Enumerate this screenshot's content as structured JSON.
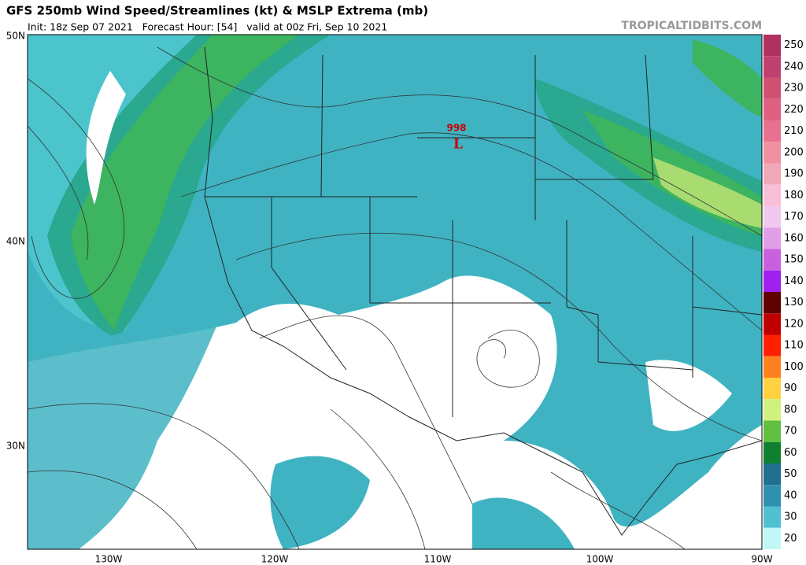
{
  "header": {
    "title": "GFS 250mb Wind Speed/Streamlines (kt) & MSLP Extrema (mb)",
    "subtitle": "Init: 18z Sep 07 2021   Forecast Hour: [54]   valid at 00z Fri, Sep 10 2021",
    "site": "TROPICALTIDBITS.COM"
  },
  "map": {
    "lat_labels": [
      "50N",
      "40N",
      "30N"
    ],
    "lon_labels": [
      "130W",
      "120W",
      "110W",
      "100W",
      "90W"
    ],
    "pressure_label": "998",
    "low_marker": "L"
  },
  "colorbar": {
    "ticks": [
      250,
      240,
      230,
      220,
      210,
      200,
      190,
      180,
      170,
      160,
      150,
      140,
      130,
      120,
      110,
      100,
      90,
      80,
      70,
      60,
      50,
      40,
      30,
      20
    ],
    "colors": [
      "#b03060",
      "#c04070",
      "#d05070",
      "#e06080",
      "#e87090",
      "#f090a0",
      "#f0a8b8",
      "#f8c0d8",
      "#f0c8f0",
      "#e0a0e8",
      "#c860e0",
      "#a020f0",
      "#600000",
      "#c00000",
      "#ff2000",
      "#ff8020",
      "#ffd040",
      "#d0f080",
      "#60c040",
      "#108030",
      "#207090",
      "#3090b0",
      "#50c0d0",
      "#c0f8f8"
    ]
  }
}
